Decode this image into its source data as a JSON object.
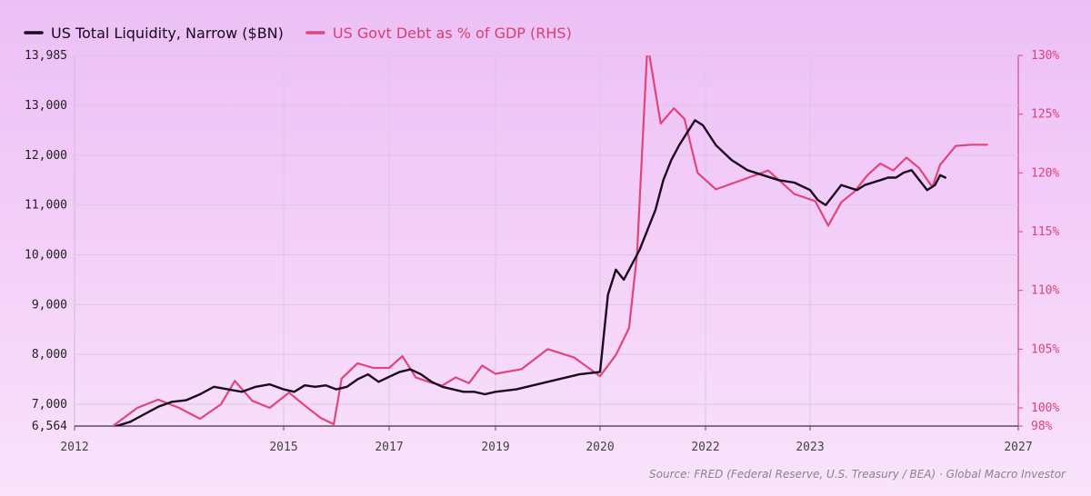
{
  "chart_data": {
    "type": "line",
    "legend": {
      "placement": "top-left"
    },
    "series": [
      {
        "name": "US Total Liquidity, Narrow ($BN)",
        "axis": "left",
        "color": "#1a0a1e",
        "x": [
          2012.6,
          2012.8,
          2013.0,
          2013.2,
          2013.4,
          2013.6,
          2013.8,
          2014.0,
          2014.2,
          2014.4,
          2014.6,
          2014.8,
          2015.0,
          2015.2,
          2015.4,
          2015.6,
          2015.8,
          2016.0,
          2016.2,
          2016.4,
          2016.6,
          2016.8,
          2017.0,
          2017.2,
          2017.4,
          2017.6,
          2017.8,
          2018.0,
          2018.2,
          2018.4,
          2018.6,
          2018.8,
          2019.0,
          2019.2,
          2019.4,
          2019.6,
          2019.8,
          2020.0,
          2020.15,
          2020.3,
          2020.45,
          2020.6,
          2020.75,
          2020.9,
          2021.05,
          2021.2,
          2021.35,
          2021.5,
          2021.65,
          2021.8,
          2021.95,
          2022.1,
          2022.25,
          2022.4,
          2022.55,
          2022.7,
          2022.85,
          2023.0,
          2023.15,
          2023.3,
          2023.45,
          2023.6,
          2023.75,
          2023.9,
          2024.05,
          2024.2,
          2024.35,
          2024.5,
          2024.65,
          2024.8,
          2024.95,
          2025.1,
          2025.25,
          2025.4,
          2025.5,
          2025.6
        ],
        "values": [
          6564,
          6650,
          6800,
          6950,
          7050,
          7080,
          7200,
          7350,
          7300,
          7250,
          7350,
          7400,
          7300,
          7250,
          7380,
          7350,
          7380,
          7300,
          7350,
          7500,
          7600,
          7450,
          7550,
          7650,
          7700,
          7600,
          7450,
          7350,
          7300,
          7250,
          7250,
          7200,
          7250,
          7300,
          7400,
          7500,
          7600,
          7650,
          9200,
          9700,
          9500,
          9800,
          10100,
          10500,
          10900,
          11500,
          11900,
          12200,
          12450,
          12700,
          12600,
          12200,
          11900,
          11700,
          11600,
          11500,
          11450,
          11300,
          11100,
          11000,
          11200,
          11400,
          11350,
          11300,
          11400,
          11450,
          11500,
          11550,
          11550,
          11650,
          11700,
          11500,
          11300,
          11400,
          11600,
          11550
        ]
      },
      {
        "name": "US Govt Debt as % of GDP (RHS)",
        "axis": "right",
        "color": "#e0457b",
        "x": [
          2012.55,
          2012.9,
          2013.2,
          2013.5,
          2013.8,
          2014.1,
          2014.3,
          2014.55,
          2014.8,
          2015.1,
          2015.4,
          2015.7,
          2015.95,
          2016.1,
          2016.4,
          2016.7,
          2017.0,
          2017.25,
          2017.5,
          2017.75,
          2018.0,
          2018.25,
          2018.5,
          2018.75,
          2019.0,
          2019.25,
          2019.5,
          2019.75,
          2020.0,
          2020.3,
          2020.55,
          2020.7,
          2020.9,
          2021.15,
          2021.4,
          2021.6,
          2021.85,
          2022.1,
          2022.35,
          2022.6,
          2022.85,
          2023.1,
          2023.35,
          2023.6,
          2023.85,
          2024.1,
          2024.35,
          2024.6,
          2024.85,
          2025.1,
          2025.35,
          2025.5,
          2025.8,
          2026.1,
          2026.4
        ],
        "values": [
          98,
          100,
          100.7,
          100,
          98.8,
          100.3,
          102.3,
          100.6,
          100,
          101.3,
          100.2,
          98.9,
          98.2,
          102.5,
          103.8,
          103.4,
          103.4,
          104.4,
          102.6,
          102.2,
          101.9,
          102.6,
          102.1,
          103.6,
          102.9,
          103.3,
          105,
          104.3,
          102.7,
          104.5,
          106.8,
          113,
          131,
          124.2,
          125.5,
          124.6,
          120,
          118.6,
          119.4,
          120.2,
          118.2,
          117.6,
          115.5,
          117.5,
          118.4,
          119.8,
          120.8,
          120.2,
          121.3,
          120.4,
          118.8,
          120.7,
          122.3,
          122.4,
          122.4
        ]
      }
    ],
    "x_ticks": [
      "2012",
      "2015",
      "2017",
      "2019",
      "2020",
      "2022",
      "2023",
      "2027"
    ],
    "y_left_ticks": [
      "13,985",
      "13,000",
      "12,000",
      "11,000",
      "10,000",
      "9,000",
      "8,000",
      "7,000",
      "6,564"
    ],
    "y_right_ticks": [
      "130%",
      "125%",
      "120%",
      "115%",
      "110%",
      "105%",
      "100%",
      "98%"
    ],
    "y_left_range": [
      6564,
      13985
    ],
    "y_right_range": [
      98,
      130
    ],
    "grid": true,
    "source": "Source: FRED (Federal Reserve, U.S. Treasury / BEA) · Global Macro Investor"
  }
}
